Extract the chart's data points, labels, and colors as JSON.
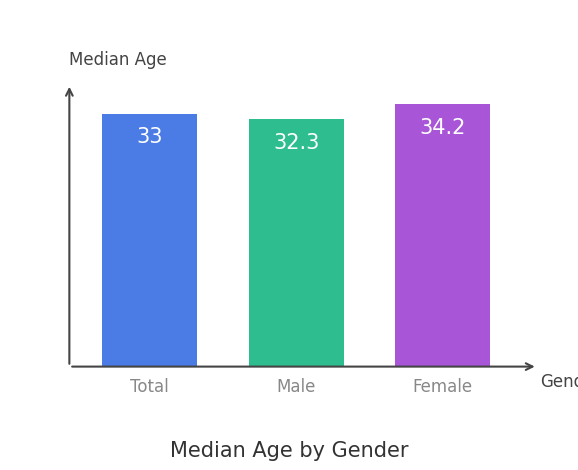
{
  "categories": [
    "Total",
    "Male",
    "Female"
  ],
  "values": [
    33,
    32.3,
    34.2
  ],
  "bar_colors": [
    "#4B7BE5",
    "#2EBD8E",
    "#A855D8"
  ],
  "bar_labels": [
    "33",
    "32.3",
    "34.2"
  ],
  "label_color": "#ffffff",
  "label_fontsize": 15,
  "ylabel": "Median Age",
  "xlabel": "Gender",
  "title": "Median Age by Gender",
  "title_fontsize": 15,
  "axis_label_fontsize": 12,
  "tick_label_fontsize": 12,
  "tick_label_color": "#888888",
  "axis_color": "#444444",
  "background_color": "#ffffff",
  "ylim": [
    0,
    38
  ],
  "bar_width": 0.65
}
